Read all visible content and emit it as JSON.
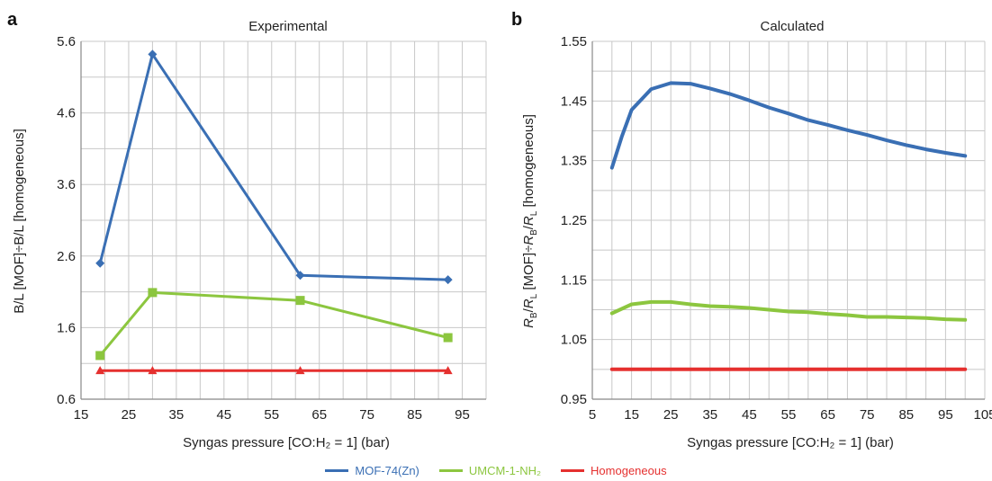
{
  "chart_data": [
    {
      "panel": "a",
      "type": "line",
      "title": "Experimental",
      "xlabel": "Syngas pressure [CO:H₂ = 1] (bar)",
      "ylabel": "B/L [MOF]÷B/L [homogeneous]",
      "xlim": [
        15,
        100
      ],
      "ylim": [
        0.6,
        5.6
      ],
      "xticks": [
        "15",
        "25",
        "35",
        "45",
        "55",
        "65",
        "75",
        "85",
        "95"
      ],
      "yticks": [
        "0.6",
        "1.6",
        "2.6",
        "3.6",
        "4.6",
        "5.6"
      ],
      "grid": true,
      "series": [
        {
          "name": "MOF-74(Zn)",
          "color": "#3a6fb4",
          "marker": "diamond",
          "x": [
            19,
            30,
            61,
            92
          ],
          "y": [
            2.5,
            5.42,
            2.33,
            2.27
          ]
        },
        {
          "name": "UMCM-1-NH₂",
          "color": "#8cc63f",
          "marker": "square",
          "x": [
            19,
            30,
            61,
            92
          ],
          "y": [
            1.21,
            2.09,
            1.98,
            1.46
          ]
        },
        {
          "name": "Homogeneous",
          "color": "#e5302f",
          "marker": "triangle",
          "x": [
            19,
            30,
            61,
            92
          ],
          "y": [
            1.0,
            1.0,
            1.0,
            1.0
          ]
        }
      ]
    },
    {
      "panel": "b",
      "type": "line",
      "title": "Calculated",
      "xlabel": "Syngas pressure [CO:H₂ = 1] (bar)",
      "ylabel": "RB/RL [MOF]÷RB/RL [homogeneous]",
      "xlim": [
        5,
        105
      ],
      "ylim": [
        0.95,
        1.55
      ],
      "xticks": [
        "5",
        "15",
        "25",
        "35",
        "45",
        "55",
        "65",
        "75",
        "85",
        "95",
        "105"
      ],
      "yticks": [
        "0.95",
        "1.05",
        "1.15",
        "1.25",
        "1.35",
        "1.45",
        "1.55"
      ],
      "grid": true,
      "series": [
        {
          "name": "MOF-74(Zn)",
          "color": "#3a6fb4",
          "marker": "none",
          "x": [
            10,
            12.5,
            15,
            20,
            25,
            30,
            35,
            40,
            45,
            50,
            55,
            60,
            65,
            70,
            75,
            80,
            85,
            90,
            95,
            100
          ],
          "y": [
            1.338,
            1.39,
            1.435,
            1.47,
            1.48,
            1.479,
            1.471,
            1.462,
            1.451,
            1.439,
            1.429,
            1.418,
            1.41,
            1.401,
            1.393,
            1.384,
            1.376,
            1.369,
            1.363,
            1.358
          ]
        },
        {
          "name": "UMCM-1-NH₂",
          "color": "#8cc63f",
          "marker": "none",
          "x": [
            10,
            15,
            20,
            25,
            30,
            35,
            40,
            45,
            50,
            55,
            60,
            65,
            70,
            75,
            80,
            85,
            90,
            95,
            100
          ],
          "y": [
            1.094,
            1.109,
            1.113,
            1.113,
            1.109,
            1.106,
            1.105,
            1.103,
            1.1,
            1.097,
            1.096,
            1.093,
            1.091,
            1.088,
            1.088,
            1.087,
            1.086,
            1.084,
            1.083
          ]
        },
        {
          "name": "Homogeneous",
          "color": "#e5302f",
          "marker": "none",
          "x": [
            10,
            100
          ],
          "y": [
            1.0,
            1.0
          ]
        }
      ]
    }
  ],
  "legend": {
    "placement": "bottom-center",
    "items": [
      {
        "label": "MOF-74(Zn)",
        "color": "#3a6fb4"
      },
      {
        "label": "UMCM-1-NH₂",
        "color": "#8cc63f"
      },
      {
        "label": "Homogeneous",
        "color": "#e5302f"
      }
    ]
  },
  "colors": {
    "grid": "#c8c8c8",
    "axis": "#888888"
  }
}
